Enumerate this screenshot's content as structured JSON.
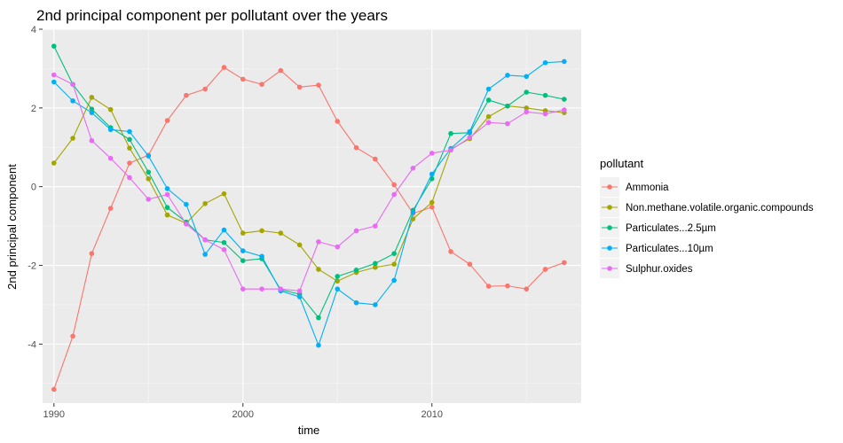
{
  "chart_data": {
    "type": "line",
    "title": "2nd principal component per pollutant over the years",
    "xlabel": "time",
    "ylabel": "2nd principal component",
    "xlim": [
      1989.4,
      2017.9
    ],
    "ylim": [
      -5.5,
      4.0
    ],
    "x_ticks": [
      1990,
      2000,
      2010
    ],
    "y_ticks": [
      -4,
      -2,
      0,
      2,
      4
    ],
    "x_tick_labels": [
      "1990",
      "2000",
      "2010"
    ],
    "y_tick_labels": [
      "-4",
      "-2",
      "0",
      "2",
      "4"
    ],
    "grid": true,
    "legend_position": "right",
    "legend_title": "pollutant",
    "x": [
      1990,
      1991,
      1992,
      1993,
      1994,
      1995,
      1996,
      1997,
      1998,
      1999,
      2000,
      2001,
      2002,
      2003,
      2004,
      2005,
      2006,
      2007,
      2008,
      2009,
      2010,
      2011,
      2012,
      2013,
      2014,
      2015,
      2016,
      2017
    ],
    "series": [
      {
        "name": "Ammonia",
        "color": "#F8766D",
        "values": [
          -5.15,
          -3.8,
          -1.7,
          -0.55,
          0.6,
          0.8,
          1.68,
          2.32,
          2.48,
          3.03,
          2.73,
          2.6,
          2.95,
          2.53,
          2.58,
          1.66,
          0.99,
          0.7,
          0.05,
          -0.68,
          -0.52,
          -1.65,
          -1.97,
          -2.53,
          -2.52,
          -2.6,
          -2.1,
          -1.93
        ]
      },
      {
        "name": "Non.methane.volatile.organic.compounds",
        "color": "#A3A500",
        "values": [
          0.6,
          1.23,
          2.27,
          1.96,
          0.98,
          0.2,
          -0.72,
          -0.93,
          -0.43,
          -0.18,
          -1.18,
          -1.12,
          -1.18,
          -1.48,
          -2.1,
          -2.4,
          -2.18,
          -2.05,
          -1.97,
          -0.82,
          -0.4,
          0.95,
          1.22,
          1.78,
          2.05,
          2.0,
          1.93,
          1.88
        ]
      },
      {
        "name": "Particulates...2.5µm",
        "color": "#00BF7D",
        "values": [
          3.57,
          2.6,
          1.97,
          1.5,
          1.2,
          0.37,
          -0.53,
          -0.9,
          -1.35,
          -1.42,
          -1.88,
          -1.83,
          -2.62,
          -2.73,
          -3.33,
          -2.28,
          -2.12,
          -1.95,
          -1.7,
          -0.6,
          0.2,
          1.35,
          1.37,
          2.2,
          2.05,
          2.4,
          2.32,
          2.22
        ]
      },
      {
        "name": "Particulates...10µm",
        "color": "#00B0F6",
        "values": [
          2.66,
          2.18,
          1.88,
          1.45,
          1.4,
          0.78,
          -0.05,
          -0.45,
          -1.72,
          -1.1,
          -1.63,
          -1.77,
          -2.65,
          -2.8,
          -4.03,
          -2.6,
          -2.95,
          -3.0,
          -2.38,
          -0.65,
          0.32,
          0.97,
          1.4,
          2.48,
          2.83,
          2.8,
          3.15,
          3.18
        ]
      },
      {
        "name": "Sulphur.oxides",
        "color": "#E76BF3",
        "values": [
          2.84,
          2.6,
          1.17,
          0.72,
          0.23,
          -0.32,
          -0.2,
          -0.95,
          -1.35,
          -1.6,
          -2.6,
          -2.6,
          -2.6,
          -2.65,
          -1.4,
          -1.53,
          -1.12,
          -1.0,
          -0.2,
          0.47,
          0.85,
          0.93,
          1.25,
          1.63,
          1.6,
          1.9,
          1.85,
          1.95
        ]
      }
    ]
  }
}
